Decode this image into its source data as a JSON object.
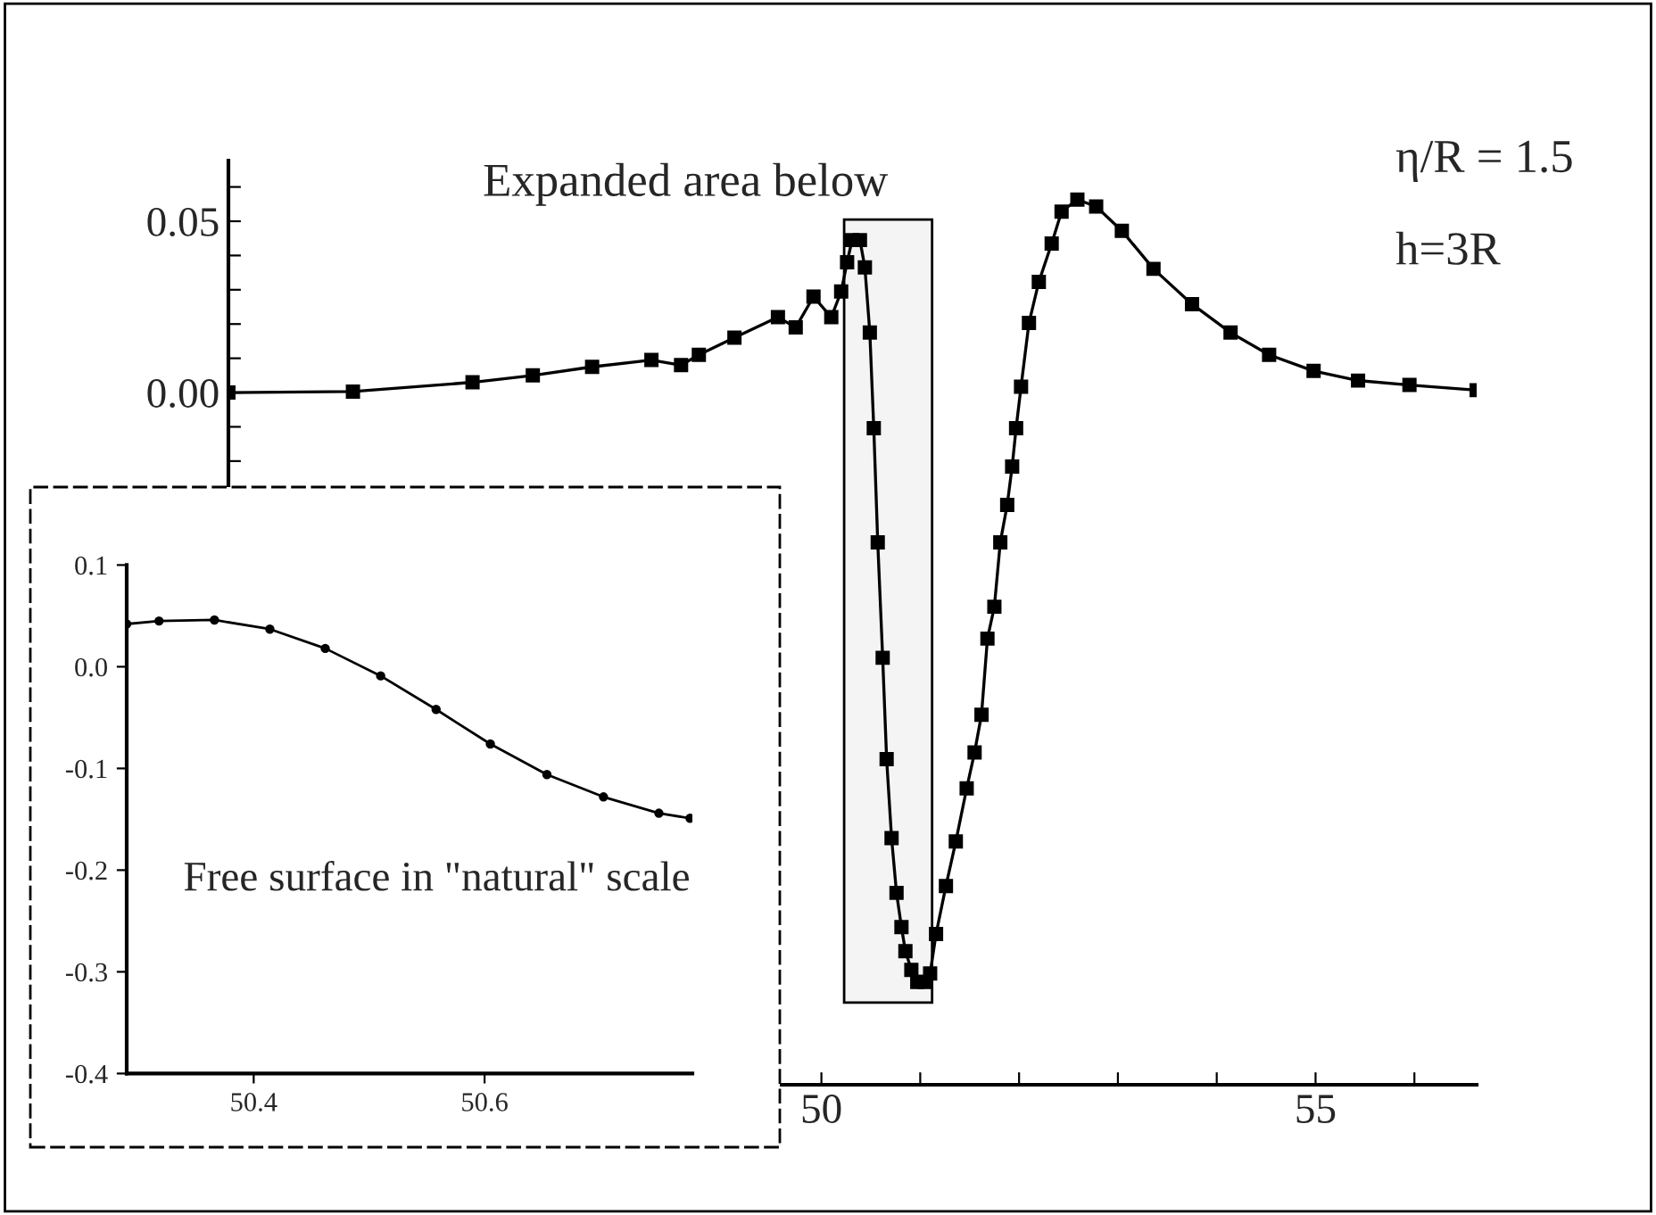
{
  "chart_data": [
    {
      "type": "line",
      "marker": "square",
      "line_style": "solid",
      "grid": false,
      "legend": false,
      "series": [
        {
          "color": "#000000",
          "x": [
            44.0,
            45.26,
            46.47,
            47.08,
            47.68,
            48.28,
            48.58,
            48.76,
            49.12,
            49.56,
            49.74,
            49.92,
            50.1,
            50.2,
            50.26,
            50.31,
            50.39,
            50.44,
            50.49,
            50.53,
            50.57,
            50.62,
            50.66,
            50.71,
            50.76,
            50.81,
            50.85,
            50.91,
            50.97,
            51.04,
            51.1,
            51.16,
            51.26,
            51.36,
            51.47,
            51.55,
            51.62,
            51.68,
            51.75,
            51.81,
            51.88,
            51.93,
            51.97,
            52.02,
            52.1,
            52.2,
            52.33,
            52.43,
            52.59,
            52.78,
            53.04,
            53.36,
            53.75,
            54.14,
            54.53,
            54.98,
            55.43,
            55.95,
            56.63
          ],
          "values": [
            0.0,
            0.0003,
            0.003,
            0.005,
            0.0075,
            0.0095,
            0.008,
            0.011,
            0.016,
            0.022,
            0.019,
            0.028,
            0.022,
            0.0295,
            0.038,
            0.0445,
            0.0445,
            0.0365,
            0.0175,
            -0.0104,
            -0.0437,
            -0.0774,
            -0.107,
            -0.13,
            -0.146,
            -0.156,
            -0.163,
            -0.1685,
            -0.172,
            -0.172,
            -0.1695,
            -0.158,
            -0.144,
            -0.131,
            -0.1155,
            -0.105,
            -0.094,
            -0.0718,
            -0.0625,
            -0.0437,
            -0.0328,
            -0.0216,
            -0.0104,
            0.0017,
            0.0203,
            0.0323,
            0.0435,
            0.0528,
            0.0563,
            0.0543,
            0.0472,
            0.0361,
            0.0258,
            0.0175,
            0.011,
            0.0063,
            0.0035,
            0.0022,
            0.0007
          ]
        }
      ],
      "xlim": [
        44.0,
        56.63
      ],
      "ylim": [
        -0.202,
        0.0677
      ],
      "xticks": [
        50,
        {
          "value": 51,
          "label": null
        },
        {
          "value": 52,
          "label": null
        },
        {
          "value": 53,
          "label": null
        },
        {
          "value": 54,
          "label": null
        },
        55,
        {
          "value": 56,
          "label": null
        }
      ],
      "yticks": [
        {
          "value": -0.02,
          "label": null
        },
        {
          "value": -0.01,
          "label": null
        },
        {
          "value": 0.0,
          "label": "0.00"
        },
        {
          "value": 0.01,
          "label": null
        },
        {
          "value": 0.02,
          "label": null
        },
        {
          "value": 0.03,
          "label": null
        },
        {
          "value": 0.04,
          "label": null
        },
        {
          "value": 0.05,
          "label": "0.05"
        },
        {
          "value": 0.06,
          "label": null
        }
      ],
      "bands": [
        {
          "axis": "x",
          "from": 50.23,
          "to": 51.12,
          "label": "Expanded area below"
        }
      ],
      "annotations": [
        "η/R = 1.5",
        "h=3R"
      ]
    },
    {
      "type": "line",
      "marker": "circle",
      "line_style": "solid",
      "grid": false,
      "legend": false,
      "series": [
        {
          "color": "#000000",
          "x": [
            50.29,
            50.318,
            50.366,
            50.414,
            50.462,
            50.51,
            50.558,
            50.605,
            50.654,
            50.703,
            50.751,
            50.778
          ],
          "values": [
            0.042,
            0.045,
            0.046,
            0.037,
            0.018,
            -0.009,
            -0.042,
            -0.076,
            -0.106,
            -0.128,
            -0.144,
            -0.149
          ]
        }
      ],
      "xlim": [
        50.29,
        50.78
      ],
      "ylim": [
        -0.4,
        0.1
      ],
      "xticks": [
        50.4,
        50.6
      ],
      "yticks": [
        {
          "value": -0.4,
          "label": "-0.4"
        },
        {
          "value": -0.3,
          "label": "-0.3"
        },
        {
          "value": -0.2,
          "label": "-0.2"
        },
        {
          "value": -0.1,
          "label": "-0.1"
        },
        {
          "value": 0.0,
          "label": "0.0"
        },
        {
          "value": 0.1,
          "label": "0.1"
        }
      ],
      "annotations": [
        "Free surface in \"natural\" scale"
      ]
    }
  ]
}
